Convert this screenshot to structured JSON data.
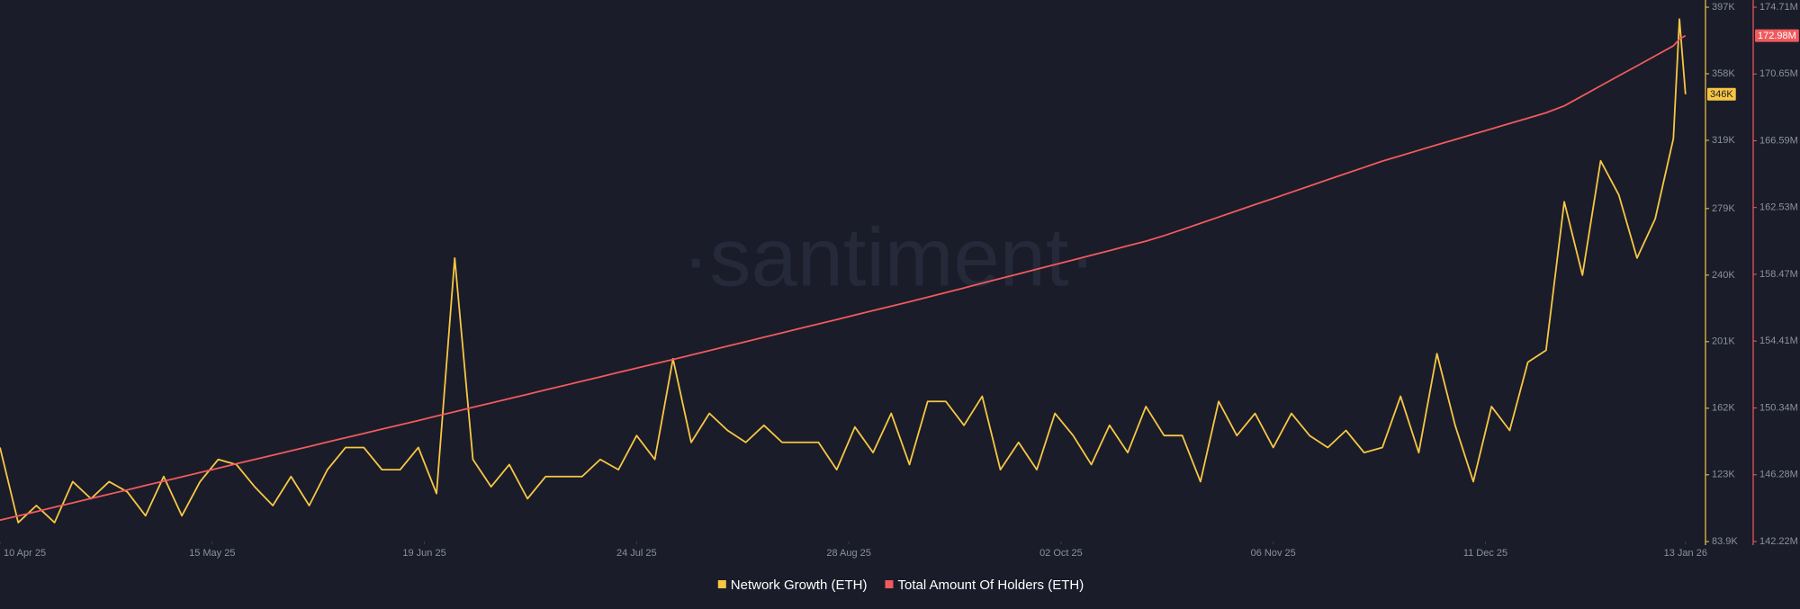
{
  "chart_data": {
    "type": "line",
    "watermark": "·santiment·",
    "x": [
      "2025-04-10",
      "2025-04-13",
      "2025-04-16",
      "2025-04-19",
      "2025-04-22",
      "2025-04-25",
      "2025-04-28",
      "2025-05-01",
      "2025-05-04",
      "2025-05-07",
      "2025-05-10",
      "2025-05-13",
      "2025-05-16",
      "2025-05-19",
      "2025-05-22",
      "2025-05-25",
      "2025-05-28",
      "2025-05-31",
      "2025-06-03",
      "2025-06-06",
      "2025-06-09",
      "2025-06-12",
      "2025-06-15",
      "2025-06-18",
      "2025-06-21",
      "2025-06-24",
      "2025-06-27",
      "2025-06-30",
      "2025-07-03",
      "2025-07-06",
      "2025-07-09",
      "2025-07-12",
      "2025-07-15",
      "2025-07-18",
      "2025-07-21",
      "2025-07-24",
      "2025-07-27",
      "2025-07-30",
      "2025-08-02",
      "2025-08-05",
      "2025-08-08",
      "2025-08-11",
      "2025-08-14",
      "2025-08-17",
      "2025-08-20",
      "2025-08-23",
      "2025-08-26",
      "2025-08-29",
      "2025-09-01",
      "2025-09-04",
      "2025-09-07",
      "2025-09-10",
      "2025-09-13",
      "2025-09-16",
      "2025-09-19",
      "2025-09-22",
      "2025-09-25",
      "2025-09-28",
      "2025-10-01",
      "2025-10-04",
      "2025-10-07",
      "2025-10-10",
      "2025-10-13",
      "2025-10-16",
      "2025-10-19",
      "2025-10-22",
      "2025-10-25",
      "2025-10-28",
      "2025-10-31",
      "2025-11-03",
      "2025-11-06",
      "2025-11-09",
      "2025-11-12",
      "2025-11-15",
      "2025-11-18",
      "2025-11-21",
      "2025-11-24",
      "2025-11-27",
      "2025-11-30",
      "2025-12-03",
      "2025-12-06",
      "2025-12-09",
      "2025-12-12",
      "2025-12-15",
      "2025-12-18",
      "2025-12-21",
      "2025-12-24",
      "2025-12-27",
      "2025-12-30",
      "2026-01-02",
      "2026-01-05",
      "2026-01-08",
      "2026-01-11",
      "2026-01-12",
      "2026-01-13"
    ],
    "xlim": [
      "2025-04-10",
      "2026-01-16"
    ],
    "xticks": [
      {
        "value": "2025-04-10",
        "label": "10 Apr 25"
      },
      {
        "value": "2025-05-15",
        "label": "15 May 25"
      },
      {
        "value": "2025-06-19",
        "label": "19 Jun 25"
      },
      {
        "value": "2025-07-24",
        "label": "24 Jul 25"
      },
      {
        "value": "2025-08-28",
        "label": "28 Aug 25"
      },
      {
        "value": "2025-10-02",
        "label": "02 Oct 25"
      },
      {
        "value": "2025-11-06",
        "label": "06 Nov 25"
      },
      {
        "value": "2025-12-11",
        "label": "11 Dec 25"
      },
      {
        "value": "2026-01-13",
        "label": "13 Jan 26"
      }
    ],
    "ylim": [
      83900,
      397000
    ],
    "yticks": [
      {
        "value": 83900,
        "label": "83.9K"
      },
      {
        "value": 123000,
        "label": "123K"
      },
      {
        "value": 162000,
        "label": "162K"
      },
      {
        "value": 201000,
        "label": "201K"
      },
      {
        "value": 240000,
        "label": "240K"
      },
      {
        "value": 279000,
        "label": "279K"
      },
      {
        "value": 319000,
        "label": "319K"
      },
      {
        "value": 358000,
        "label": "358K"
      },
      {
        "value": 397000,
        "label": "397K"
      }
    ],
    "y2lim": [
      142220000,
      174710000
    ],
    "y2ticks": [
      {
        "value": 142220000,
        "label": "142.22M"
      },
      {
        "value": 146280000,
        "label": "146.28M"
      },
      {
        "value": 150340000,
        "label": "150.34M"
      },
      {
        "value": 154410000,
        "label": "154.41M"
      },
      {
        "value": 158470000,
        "label": "158.47M"
      },
      {
        "value": 162530000,
        "label": "162.53M"
      },
      {
        "value": 166590000,
        "label": "166.59M"
      },
      {
        "value": 170650000,
        "label": "170.65M"
      },
      {
        "value": 174710000,
        "label": "174.71M"
      }
    ],
    "series": [
      {
        "name": "Network Growth (ETH)",
        "color": "#f7c744",
        "axis": "y",
        "end_label": "346K",
        "values": [
          139000,
          95000,
          105000,
          95000,
          119000,
          109000,
          119000,
          113000,
          99000,
          122000,
          99000,
          119000,
          132000,
          129000,
          116000,
          105000,
          122000,
          105000,
          126000,
          139000,
          139000,
          126000,
          126000,
          139000,
          112000,
          250000,
          132000,
          116000,
          129000,
          109000,
          122000,
          122000,
          122000,
          132000,
          126000,
          146000,
          132000,
          191000,
          142000,
          159000,
          149000,
          142000,
          152000,
          142000,
          142000,
          142000,
          126000,
          151000,
          136000,
          159000,
          129000,
          166000,
          166000,
          152000,
          169000,
          126000,
          142000,
          126000,
          159000,
          146000,
          129000,
          152000,
          136000,
          163000,
          146000,
          146000,
          119000,
          166000,
          146000,
          159000,
          139000,
          159000,
          146000,
          139000,
          149000,
          136000,
          139000,
          169000,
          136000,
          194000,
          152000,
          119000,
          163000,
          149000,
          189000,
          196000,
          283000,
          240000,
          307000,
          287000,
          250000,
          273000,
          320000,
          390000,
          346000
        ]
      },
      {
        "name": "Total Amount Of Holders (ETH)",
        "color": "#f05a5e",
        "axis": "y2",
        "end_label": "172.98M",
        "values": [
          143520000,
          143780000,
          144040000,
          144310000,
          144570000,
          144840000,
          145100000,
          145360000,
          145630000,
          145890000,
          146150000,
          146420000,
          146680000,
          146950000,
          147210000,
          147470000,
          147740000,
          148000000,
          148270000,
          148530000,
          148790000,
          149060000,
          149320000,
          149580000,
          149850000,
          150110000,
          150380000,
          150640000,
          150910000,
          151170000,
          151440000,
          151700000,
          151970000,
          152230000,
          152500000,
          152760000,
          153030000,
          153290000,
          153560000,
          153830000,
          154100000,
          154370000,
          154640000,
          154910000,
          155180000,
          155450000,
          155720000,
          155990000,
          156260000,
          156530000,
          156800000,
          157080000,
          157360000,
          157640000,
          157930000,
          158210000,
          158490000,
          158780000,
          159060000,
          159340000,
          159630000,
          159910000,
          160200000,
          160480000,
          160820000,
          161190000,
          161570000,
          161950000,
          162330000,
          162710000,
          163080000,
          163460000,
          163840000,
          164220000,
          164600000,
          164970000,
          165350000,
          165680000,
          166010000,
          166340000,
          166660000,
          166990000,
          167310000,
          167640000,
          167960000,
          168290000,
          168710000,
          169320000,
          169930000,
          170540000,
          171140000,
          171750000,
          172360000,
          172770000,
          172980000
        ]
      }
    ]
  }
}
